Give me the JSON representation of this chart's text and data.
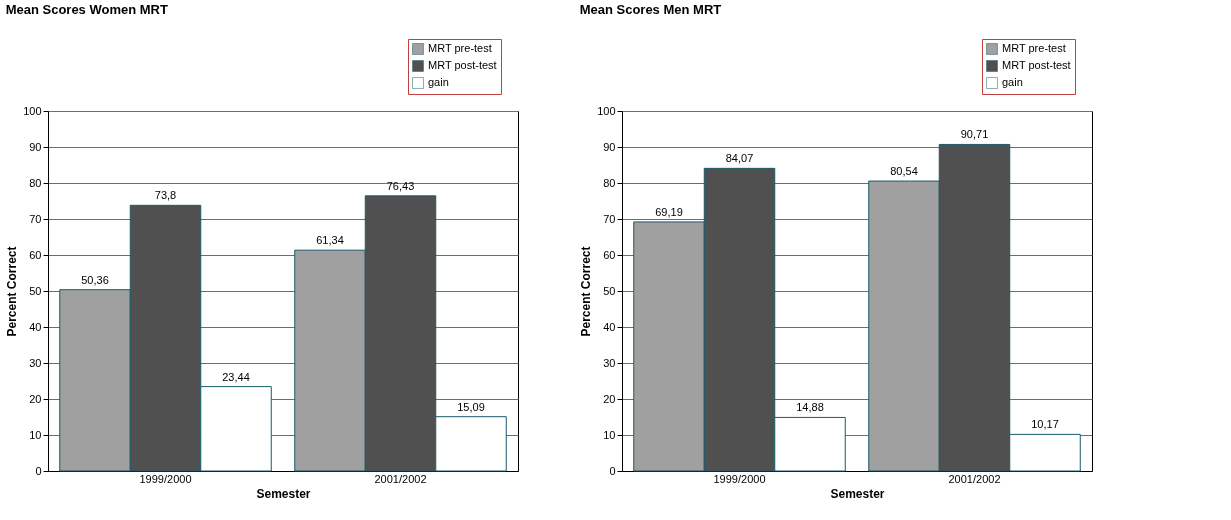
{
  "chart_data": [
    {
      "type": "bar",
      "title": "Mean Scores Women MRT",
      "xlabel": "Semester",
      "ylabel": "Percent Correct",
      "categories": [
        "1999/2000",
        "2001/2002"
      ],
      "ylim": [
        0,
        100
      ],
      "yticks": [
        0,
        10,
        20,
        30,
        40,
        50,
        60,
        70,
        80,
        90,
        100
      ],
      "grid": "y",
      "legend": "top right",
      "series": [
        {
          "name": "MRT pre-test",
          "color": "#a0a0a0",
          "values": [
            50.36,
            61.34
          ],
          "value_labels": [
            "50,36",
            "61,34"
          ]
        },
        {
          "name": "MRT post-test",
          "color": "#505050",
          "values": [
            73.8,
            76.43
          ],
          "value_labels": [
            "73,8",
            "76,43"
          ]
        },
        {
          "name": "gain",
          "color": "#ffffff",
          "values": [
            23.44,
            15.09
          ],
          "value_labels": [
            "23,44",
            "15,09"
          ]
        }
      ]
    },
    {
      "type": "bar",
      "title": "Mean Scores Men MRT",
      "xlabel": "Semester",
      "ylabel": "Percent Correct",
      "categories": [
        "1999/2000",
        "2001/2002"
      ],
      "ylim": [
        0,
        100
      ],
      "yticks": [
        0,
        10,
        20,
        30,
        40,
        50,
        60,
        70,
        80,
        90,
        100
      ],
      "grid": "y",
      "legend": "top right",
      "series": [
        {
          "name": "MRT pre-test",
          "color": "#a0a0a0",
          "values": [
            69.19,
            80.54
          ],
          "value_labels": [
            "69,19",
            "80,54"
          ]
        },
        {
          "name": "MRT post-test",
          "color": "#505050",
          "values": [
            84.07,
            90.71
          ],
          "value_labels": [
            "84,07",
            "90,71"
          ]
        },
        {
          "name": "gain",
          "color": "#ffffff",
          "values": [
            14.88,
            10.17
          ],
          "value_labels": [
            "14,88",
            "10,17"
          ]
        }
      ]
    }
  ]
}
